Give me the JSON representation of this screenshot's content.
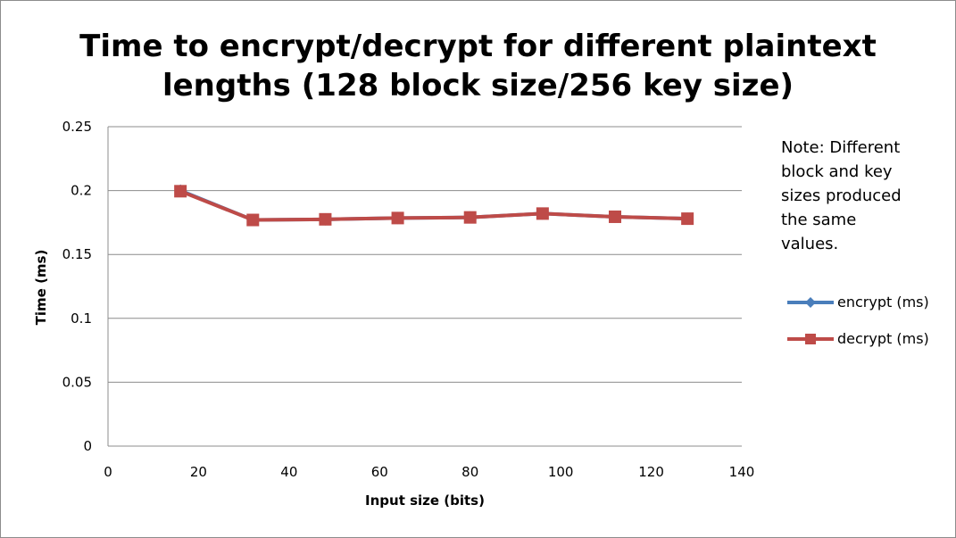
{
  "chart_data": {
    "type": "line",
    "title_lines": [
      "Time to encrypt/decrypt for different plaintext",
      "lengths (128 block size/256 key size)"
    ],
    "xlabel": "Input size (bits)",
    "ylabel": "Time (ms)",
    "xlim": [
      0,
      140
    ],
    "ylim": [
      0,
      0.25
    ],
    "xticks": [
      0,
      20,
      40,
      60,
      80,
      100,
      120,
      140
    ],
    "yticks": [
      "0",
      "0.05",
      "0.1",
      "0.15",
      "0.2",
      "0.25"
    ],
    "x": [
      16,
      32,
      48,
      64,
      80,
      96,
      112,
      128
    ],
    "series": [
      {
        "name": "encrypt (ms)",
        "color": "#4a7ebb",
        "marker": "diamond",
        "values": [
          0.2,
          0.177,
          0.1775,
          0.1785,
          0.179,
          0.182,
          0.1795,
          0.178
        ]
      },
      {
        "name": "decrypt (ms)",
        "color": "#be4b48",
        "marker": "square",
        "values": [
          0.1995,
          0.177,
          0.1775,
          0.1785,
          0.179,
          0.182,
          0.1795,
          0.178
        ]
      }
    ],
    "grid": true,
    "legend": "right",
    "note": "Note: Different\nblock and key\nsizes produced\nthe same\nvalues."
  }
}
